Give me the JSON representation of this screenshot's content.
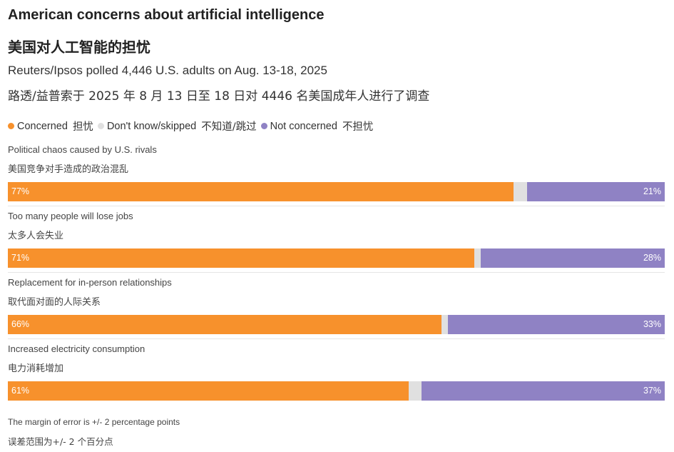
{
  "header": {
    "title": "American concerns about artificial intelligence",
    "title_zh": "美国对人工智能的担忧",
    "subtitle": "Reuters/Ipsos polled 4,446 U.S. adults on Aug. 13-18, 2025",
    "subtitle_zh": "路透/益普索于 2025 年 8 月 13 日至 18 日对 4446 名美国成年人进行了调查"
  },
  "legend": [
    {
      "name": "Concerned",
      "name_zh": "担忧",
      "color": "#f7912c"
    },
    {
      "name": "Don't know/skipped",
      "name_zh": "不知道/跳过",
      "color": "#e0e0e0"
    },
    {
      "name": "Not concerned",
      "name_zh": "不担忧",
      "color": "#8f82c4"
    }
  ],
  "chart_data": {
    "type": "bar",
    "orientation": "horizontal",
    "stacked": true,
    "percent_scale": [
      0,
      100
    ],
    "categories": [
      "Political chaos caused by U.S. rivals",
      "Too many people will lose jobs",
      "Replacement for in-person relationships",
      "Increased electricity consumption"
    ],
    "categories_zh": [
      "美国竞争对手造成的政治混乱",
      "太多人会失业",
      "取代面对面的人际关系",
      "电力消耗增加"
    ],
    "series": [
      {
        "name": "Concerned",
        "values": [
          77,
          71,
          66,
          61
        ],
        "labels": [
          "77%",
          "71%",
          "66%",
          "61%"
        ]
      },
      {
        "name": "Don't know/skipped",
        "values": [
          2,
          1,
          1,
          2
        ]
      },
      {
        "name": "Not concerned",
        "values": [
          21,
          28,
          33,
          37
        ],
        "labels": [
          "21%",
          "28%",
          "33%",
          "37%"
        ]
      }
    ]
  },
  "footer": {
    "note": "The margin of error is +/- 2 percentage points",
    "note_zh": "误差范围为+/- 2 个百分点"
  }
}
